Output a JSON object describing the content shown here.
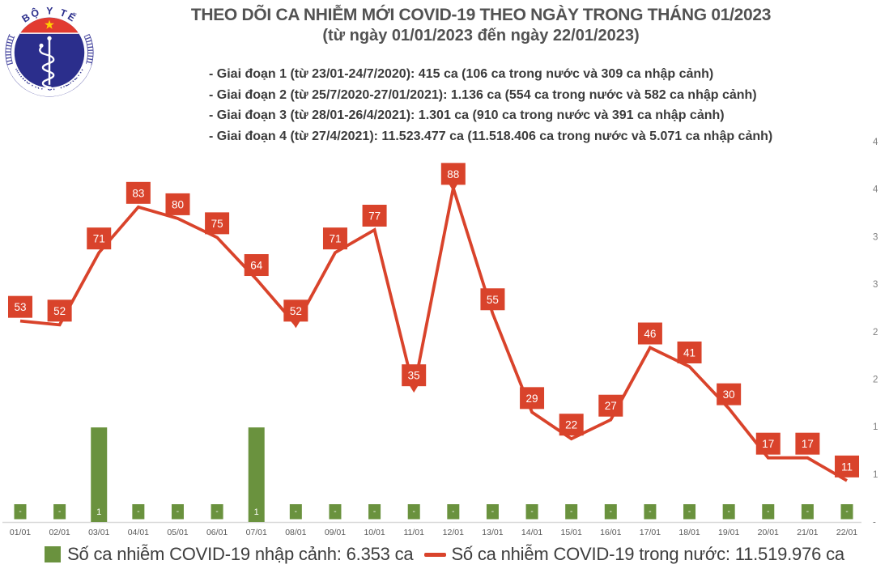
{
  "logo": {
    "top_text": "BỘ Y TẾ",
    "bottom_text": "MINISTRY OF HEALTH"
  },
  "header": {
    "title_line1": "THEO DÕI CA NHIỄM MỚI COVID-19 THEO NGÀY TRONG THÁNG 01/2023",
    "title_line2": "(từ ngày 01/01/2023 đến ngày 22/01/2023)",
    "bullets": [
      "- Giai đoạn 1 (từ 23/01-24/7/2020): 415 ca (106 ca trong nước và 309 ca nhập cảnh)",
      "- Giai đoạn 2 (từ 25/7/2020-27/01/2021): 1.136 ca (554 ca trong nước và 582 ca nhập cảnh)",
      "- Giai đoạn 3 (từ 28/01-26/4/2021): 1.301 ca (910 ca trong nước và 391 ca nhập cảnh)",
      "- Giai đoạn 4 (từ 27/4/2021): 11.523.477 ca (11.518.406 ca trong nước và 5.071 ca nhập cảnh)"
    ]
  },
  "chart_data": {
    "type": "combo-bar-line",
    "categories": [
      "01/01",
      "02/01",
      "03/01",
      "04/01",
      "05/01",
      "06/01",
      "07/01",
      "08/01",
      "09/01",
      "10/01",
      "11/01",
      "12/01",
      "13/01",
      "14/01",
      "15/01",
      "16/01",
      "17/01",
      "18/01",
      "19/01",
      "20/01",
      "21/01",
      "22/01"
    ],
    "series": [
      {
        "name": "Số ca nhiễm COVID-19 nhập cảnh",
        "type": "bar",
        "values": [
          0,
          0,
          1,
          0,
          0,
          0,
          1,
          0,
          0,
          0,
          0,
          0,
          0,
          0,
          0,
          0,
          0,
          0,
          0,
          0,
          0,
          0
        ],
        "value_labels": [
          "-",
          "-",
          "1",
          "-",
          "-",
          "-",
          "1",
          "-",
          "-",
          "-",
          "-",
          "-",
          "-",
          "-",
          "-",
          "-",
          "-",
          "-",
          "-",
          "-",
          "-",
          "-"
        ]
      },
      {
        "name": "Số ca nhiễm COVID-19 trong nước",
        "type": "line",
        "values": [
          53,
          52,
          71,
          83,
          80,
          75,
          64,
          52,
          71,
          77,
          35,
          88,
          55,
          29,
          22,
          27,
          46,
          41,
          30,
          17,
          17,
          11
        ]
      }
    ],
    "line_axis": {
      "min": 0,
      "max": 100
    },
    "right_axis": {
      "max": 4,
      "labels": [
        "4",
        "4",
        "3",
        "3",
        "2",
        "2",
        "1",
        "1",
        "-"
      ]
    },
    "callout_indices": [
      7,
      10,
      11
    ],
    "grid": "off",
    "legend_position": "bottom"
  },
  "legend": {
    "bar_label": "Số ca nhiễm COVID-19 nhập cảnh: 6.353 ca",
    "line_label": "Số ca nhiễm COVID-19 trong nước: 11.519.976 ca"
  },
  "colors": {
    "red": "#d9432b",
    "green": "#6a923e",
    "axis_text": "#7f7f7f",
    "date_text": "#595959",
    "baseline": "#d9d9d9",
    "navy": "#2b2e8c",
    "ring_blue": "#4949a0",
    "logo_red": "#e23b30",
    "star_yellow": "#ffd100"
  }
}
